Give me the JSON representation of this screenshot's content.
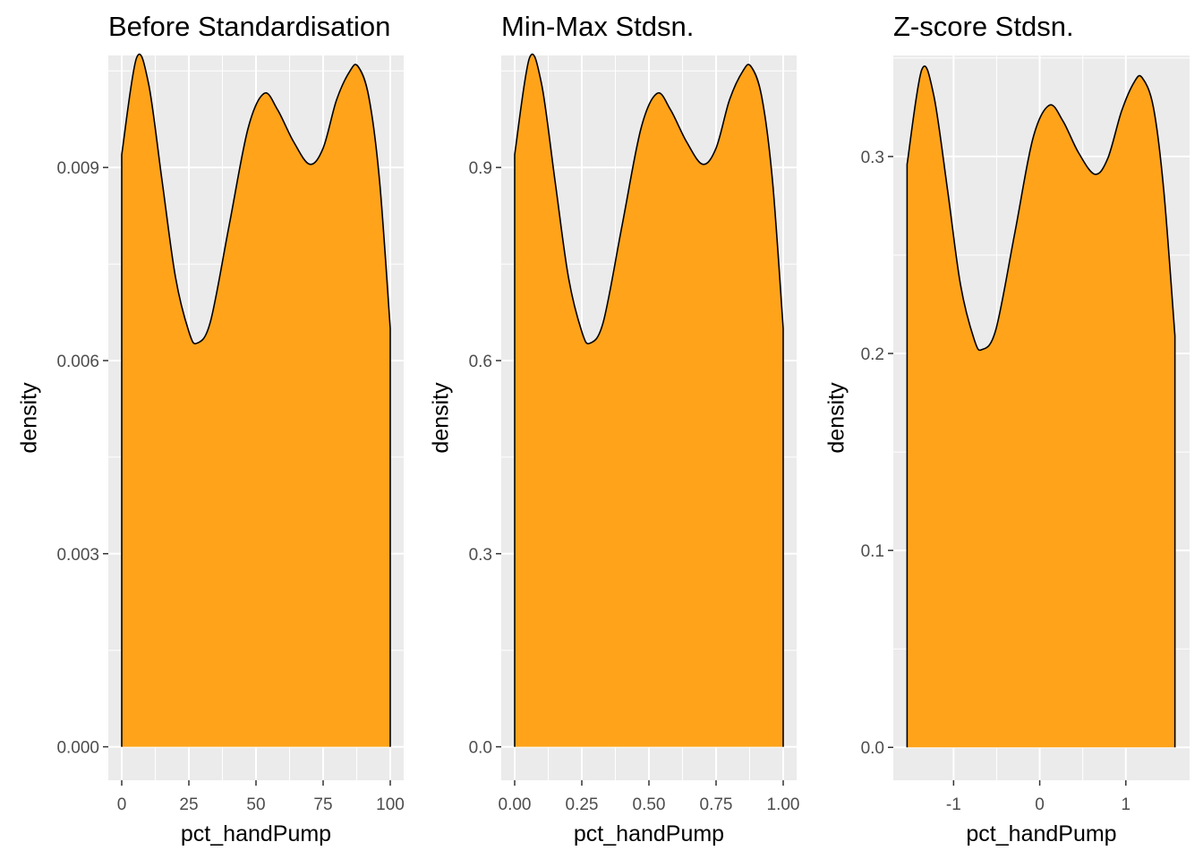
{
  "chart_data": [
    {
      "type": "area",
      "title": "Before Standardisation",
      "xlabel": "pct_handPump",
      "ylabel": "density",
      "xlim": [
        -5,
        105
      ],
      "ylim": [
        -0.00052,
        0.01074
      ],
      "x_ticks": [
        0,
        25,
        50,
        75,
        100
      ],
      "x_tick_labels": [
        "0",
        "25",
        "50",
        "75",
        "100"
      ],
      "y_ticks": [
        0.0,
        0.003,
        0.006,
        0.009
      ],
      "y_tick_labels": [
        "0.000",
        "0.003",
        "0.006",
        "0.009"
      ],
      "x": [
        0,
        5.5,
        10,
        15,
        20,
        25,
        28,
        33,
        40,
        47,
        53,
        58,
        64,
        70,
        75,
        80,
        85,
        88,
        92,
        96,
        100
      ],
      "y": [
        0.0092,
        0.0107,
        0.0103,
        0.0088,
        0.0073,
        0.00645,
        0.00627,
        0.0066,
        0.0081,
        0.0096,
        0.01015,
        0.0099,
        0.0094,
        0.00905,
        0.0093,
        0.01005,
        0.0105,
        0.01057,
        0.0101,
        0.0088,
        0.0065
      ],
      "fill_color": "#ffa31a",
      "line_color": "#000000",
      "grid": true
    },
    {
      "type": "area",
      "title": "Min-Max Stdsn.",
      "xlabel": "pct_handPump",
      "ylabel": "density",
      "xlim": [
        -0.05,
        1.05
      ],
      "ylim": [
        -0.052,
        1.074
      ],
      "x_ticks": [
        0,
        0.25,
        0.5,
        0.75,
        1.0
      ],
      "x_tick_labels": [
        "0.00",
        "0.25",
        "0.50",
        "0.75",
        "1.00"
      ],
      "y_ticks": [
        0.0,
        0.3,
        0.6,
        0.9
      ],
      "y_tick_labels": [
        "0.0",
        "0.3",
        "0.6",
        "0.9"
      ],
      "x": [
        0,
        0.055,
        0.1,
        0.15,
        0.2,
        0.25,
        0.28,
        0.33,
        0.4,
        0.47,
        0.53,
        0.58,
        0.64,
        0.7,
        0.75,
        0.8,
        0.85,
        0.88,
        0.92,
        0.96,
        1.0
      ],
      "y": [
        0.92,
        1.07,
        1.03,
        0.88,
        0.73,
        0.645,
        0.627,
        0.66,
        0.81,
        0.96,
        1.015,
        0.99,
        0.94,
        0.905,
        0.93,
        1.005,
        1.05,
        1.057,
        1.01,
        0.88,
        0.65
      ],
      "fill_color": "#ffa31a",
      "line_color": "#000000",
      "grid": true
    },
    {
      "type": "area",
      "title": "Z-score Stdsn.",
      "xlabel": "pct_handPump",
      "ylabel": "density",
      "xlim": [
        -1.7,
        1.74
      ],
      "ylim": [
        -0.0167,
        0.3513
      ],
      "x_ticks": [
        -1,
        0,
        1
      ],
      "x_tick_labels": [
        "-1",
        "0",
        "1"
      ],
      "y_ticks": [
        0.0,
        0.1,
        0.2,
        0.3
      ],
      "y_tick_labels": [
        "0.0",
        "0.1",
        "0.2",
        "0.3"
      ],
      "x": [
        -1.54,
        -1.37,
        -1.23,
        -1.07,
        -0.92,
        -0.76,
        -0.67,
        -0.51,
        -0.29,
        -0.08,
        0.11,
        0.27,
        0.45,
        0.64,
        0.79,
        0.95,
        1.1,
        1.19,
        1.32,
        1.44,
        1.57
      ],
      "y": [
        0.296,
        0.344,
        0.331,
        0.283,
        0.235,
        0.207,
        0.202,
        0.212,
        0.261,
        0.309,
        0.326,
        0.318,
        0.302,
        0.291,
        0.299,
        0.323,
        0.338,
        0.34,
        0.325,
        0.283,
        0.209
      ],
      "fill_color": "#ffa31a",
      "line_color": "#000000",
      "grid": true
    }
  ]
}
